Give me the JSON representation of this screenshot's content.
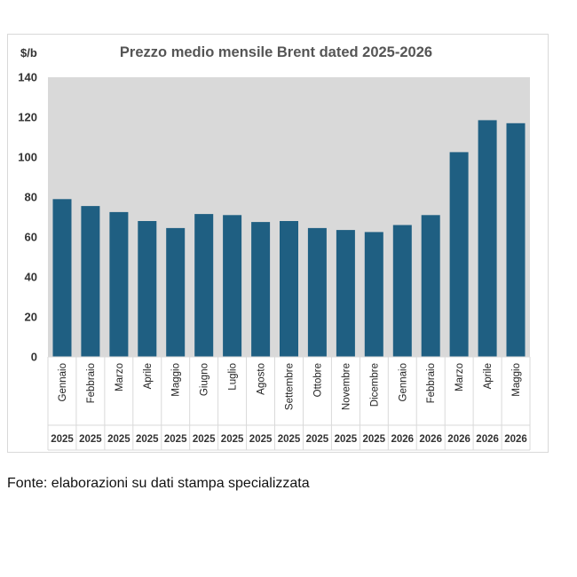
{
  "chart_data": {
    "type": "bar",
    "title": "Prezzo medio mensile Brent dated 2025-2026",
    "ylabel": "$/b",
    "xlabel": "",
    "ylim": [
      0,
      140
    ],
    "yticks": [
      0,
      20,
      40,
      60,
      80,
      100,
      120,
      140
    ],
    "grid": false,
    "legend": "none",
    "plot_background": "#d9d9d9",
    "bar_color": "#1f5f82",
    "categories": [
      {
        "month": "Gennaio",
        "year": "2025"
      },
      {
        "month": "Febbraio",
        "year": "2025"
      },
      {
        "month": "Marzo",
        "year": "2025"
      },
      {
        "month": "Aprile",
        "year": "2025"
      },
      {
        "month": "Maggio",
        "year": "2025"
      },
      {
        "month": "Giugno",
        "year": "2025"
      },
      {
        "month": "Luglio",
        "year": "2025"
      },
      {
        "month": "Agosto",
        "year": "2025"
      },
      {
        "month": "Settembre",
        "year": "2025"
      },
      {
        "month": "Ottobre",
        "year": "2025"
      },
      {
        "month": "Novembre",
        "year": "2025"
      },
      {
        "month": "Dicembre",
        "year": "2025"
      },
      {
        "month": "Gennaio",
        "year": "2026"
      },
      {
        "month": "Febbraio",
        "year": "2026"
      },
      {
        "month": "Marzo",
        "year": "2026"
      },
      {
        "month": "Aprile",
        "year": "2026"
      },
      {
        "month": "Maggio",
        "year": "2026"
      }
    ],
    "values": [
      79,
      75.5,
      72.5,
      68,
      64.5,
      71.5,
      71,
      67.5,
      68,
      64.5,
      63.5,
      62.5,
      66,
      71,
      102.5,
      118.5,
      117
    ]
  },
  "footer": {
    "source": "Fonte: elaborazioni su dati stampa specializzata"
  }
}
